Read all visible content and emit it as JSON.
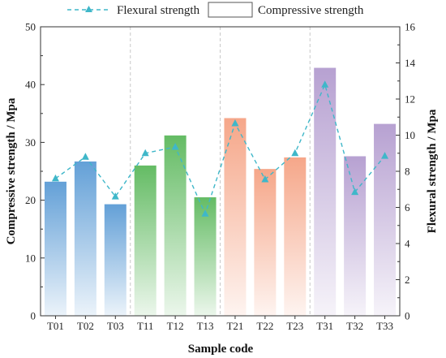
{
  "chart_data": {
    "type": "bar",
    "categories": [
      "T01",
      "T02",
      "T03",
      "T11",
      "T12",
      "T13",
      "T21",
      "T22",
      "T23",
      "T31",
      "T32",
      "T33"
    ],
    "series": [
      {
        "name": "Compressive strength",
        "axis": "left",
        "kind": "bar",
        "values": [
          23.2,
          26.7,
          19.3,
          26.0,
          31.2,
          20.5,
          34.2,
          25.4,
          27.4,
          42.9,
          27.6,
          33.2
        ]
      },
      {
        "name": "Flexural strength",
        "axis": "right",
        "kind": "line",
        "color": "#3fb7c9",
        "values": [
          7.6,
          8.8,
          6.6,
          9.0,
          9.35,
          5.65,
          10.65,
          7.55,
          9.0,
          12.8,
          6.85,
          8.85
        ]
      }
    ],
    "group_colors": [
      "#5b9bd5",
      "#5cb85c",
      "#f5a283",
      "#b39ccf"
    ],
    "xlabel": "Sample code",
    "ylabel_left": "Compressive strength / Mpa",
    "ylabel_right": "Flexural strength / Mpa",
    "ylim_left": [
      0,
      50
    ],
    "ylim_right": [
      0,
      16
    ],
    "yticks_left": [
      0,
      10,
      20,
      30,
      40,
      50
    ],
    "yticks_right": [
      0,
      2,
      4,
      6,
      8,
      10,
      12,
      14,
      16
    ],
    "group_dividers": true,
    "legend": {
      "position": "top",
      "line_label": "Flexural strength",
      "bar_label": "Compressive strength"
    }
  }
}
